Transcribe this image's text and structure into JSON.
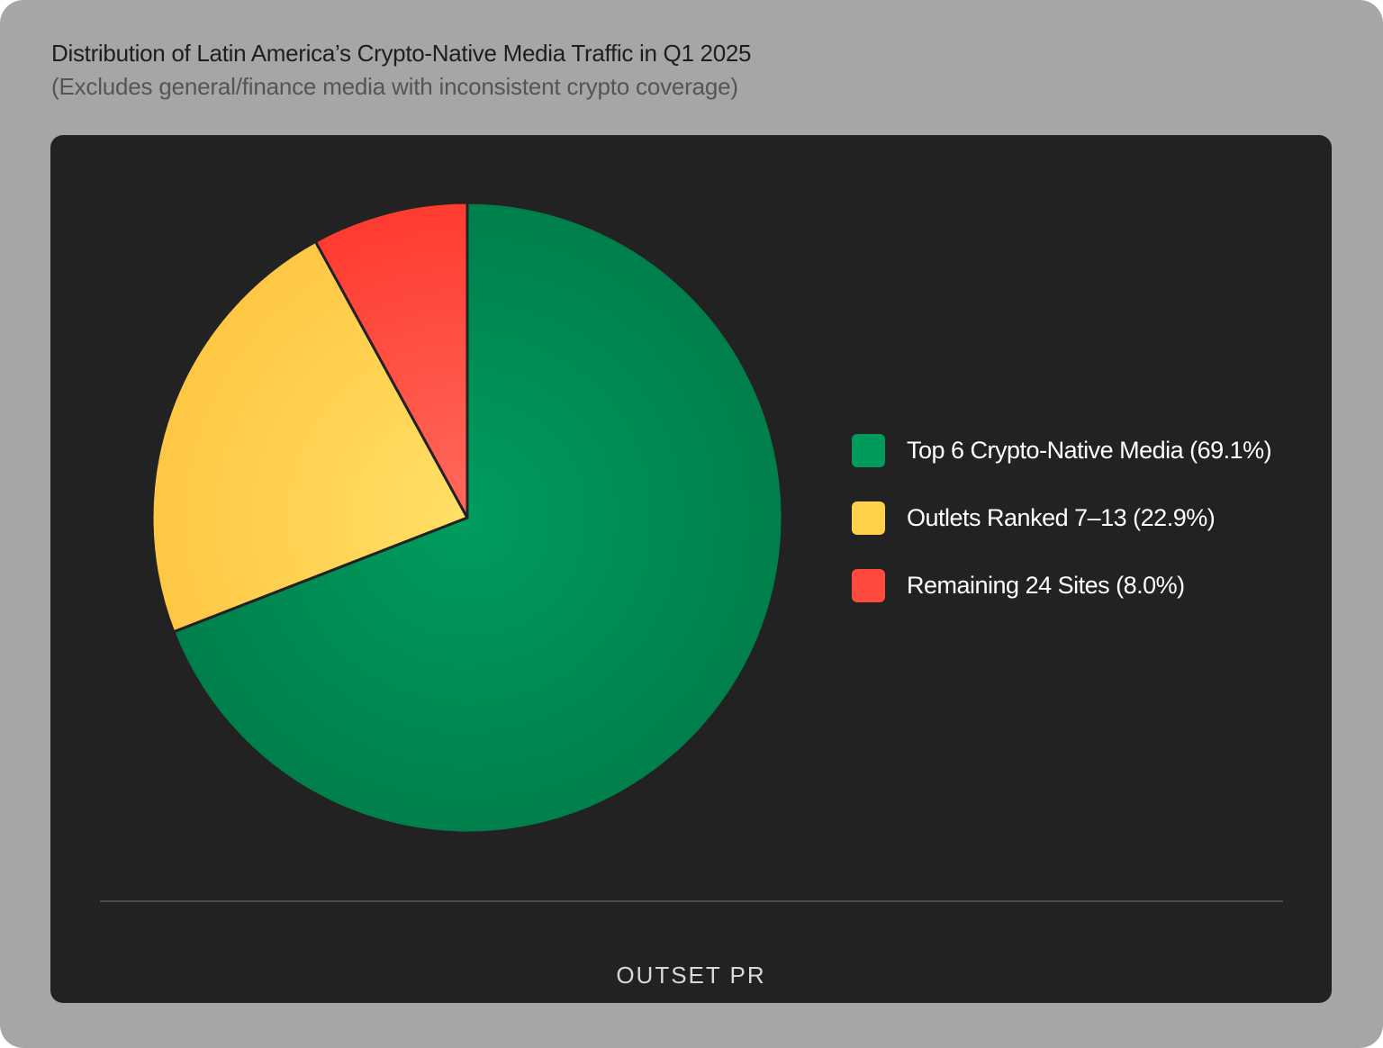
{
  "header": {
    "title": "Distribution of Latin America’s Crypto-Native Media Traffic in Q1 2025",
    "subtitle": "(Excludes general/finance media with inconsistent crypto coverage)"
  },
  "chart_data": {
    "type": "pie",
    "title": "Distribution of Latin America’s Crypto-Native Media Traffic in Q1 2025",
    "subtitle": "(Excludes general/finance media with inconsistent crypto coverage)",
    "categories": [
      "Top 6 Crypto-Native Media",
      "Outlets Ranked 7–13",
      "Remaining 24 Sites"
    ],
    "values": [
      69.1,
      22.9,
      8.0
    ],
    "unit": "%",
    "colors": [
      "#009a5b",
      "#ffd24a",
      "#ff4a3d"
    ],
    "legend_position": "right"
  },
  "legend": {
    "items": [
      {
        "label": "Top 6 Crypto-Native Media (69.1%)",
        "color": "#009a5b"
      },
      {
        "label": "Outlets Ranked 7–13 (22.9%)",
        "color": "#ffd24a"
      },
      {
        "label": "Remaining 24 Sites (8.0%)",
        "color": "#ff4a3d"
      }
    ]
  },
  "footer": {
    "logo_text": "OUTSET PR"
  }
}
